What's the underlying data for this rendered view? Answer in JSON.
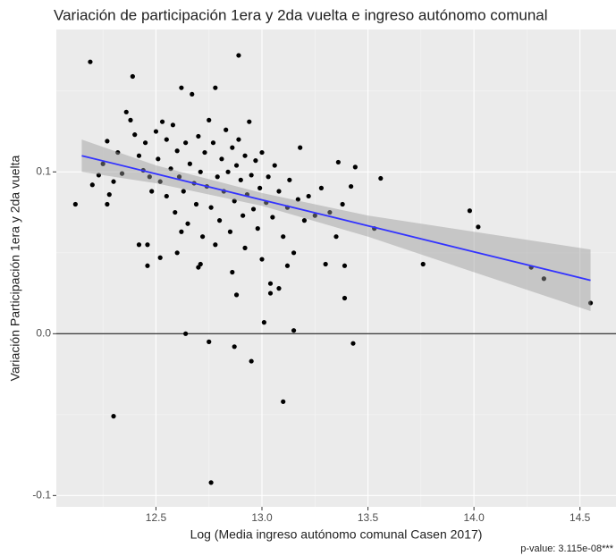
{
  "chart_data": {
    "type": "scatter",
    "title": "Variación de participación 1era y 2da vuelta e ingreso autónomo comunal",
    "x_label": "Log (Media ingreso autónomo comunal Casen 2017)",
    "y_label": "Variación Participación 1era y 2da vuelta",
    "annotation": "p-value: 3.115e-08***",
    "xlim": [
      12.03,
      14.67
    ],
    "ylim": [
      -0.107,
      0.188
    ],
    "xticks": [
      12.5,
      {
        "value": 13,
        "label": "13.0"
      },
      13.5,
      {
        "value": 14,
        "label": "14.0"
      },
      14.5
    ],
    "yticks": [
      -0.1,
      {
        "value": 0,
        "label": "0.0"
      },
      0.1
    ],
    "grid": true,
    "color": "#000000",
    "hline": 0,
    "x": [
      12.12,
      12.19,
      12.3,
      12.39,
      12.76,
      12.89,
      12.64,
      12.75,
      12.87,
      12.95,
      13.1,
      13.15,
      13.01,
      13.43,
      13.98,
      14.02,
      13.76,
      14.27,
      14.33,
      14.55,
      13.56,
      13.53,
      13.39,
      13.39,
      13.3,
      13.44,
      13.36,
      13.04,
      13.04,
      12.88,
      12.71,
      12.46,
      12.42,
      12.27,
      12.27,
      12.36,
      12.38,
      12.4,
      12.42,
      12.44,
      12.45,
      12.47,
      12.48,
      12.5,
      12.51,
      12.52,
      12.53,
      12.55,
      12.55,
      12.57,
      12.58,
      12.59,
      12.6,
      12.61,
      12.62,
      12.63,
      12.64,
      12.65,
      12.66,
      12.67,
      12.68,
      12.69,
      12.7,
      12.71,
      12.72,
      12.73,
      12.74,
      12.75,
      12.76,
      12.77,
      12.78,
      12.79,
      12.8,
      12.81,
      12.82,
      12.83,
      12.84,
      12.85,
      12.86,
      12.87,
      12.88,
      12.89,
      12.9,
      12.91,
      12.92,
      12.93,
      12.94,
      12.95,
      12.96,
      12.97,
      12.98,
      12.99,
      13.0,
      13.02,
      13.03,
      13.05,
      13.06,
      13.08,
      13.1,
      13.12,
      13.13,
      13.15,
      13.17,
      13.18,
      13.2,
      13.22,
      13.25,
      13.28,
      13.32,
      13.35,
      13.38,
      13.42,
      12.2,
      12.23,
      12.25,
      12.28,
      12.3,
      12.32,
      12.34,
      12.46,
      12.52,
      12.6,
      12.62,
      12.7,
      12.78,
      12.86,
      12.92,
      13.0,
      13.08,
      13.12
    ],
    "values": [
      0.08,
      0.168,
      -0.051,
      0.159,
      -0.092,
      0.172,
      0.0,
      -0.005,
      -0.008,
      -0.017,
      -0.042,
      0.002,
      0.007,
      -0.006,
      0.076,
      0.066,
      0.043,
      0.041,
      0.034,
      0.019,
      0.096,
      0.065,
      0.022,
      0.042,
      0.043,
      0.103,
      0.106,
      0.031,
      0.025,
      0.024,
      0.043,
      0.042,
      0.055,
      0.08,
      0.119,
      0.137,
      0.132,
      0.123,
      0.11,
      0.101,
      0.118,
      0.097,
      0.088,
      0.125,
      0.108,
      0.094,
      0.131,
      0.12,
      0.085,
      0.102,
      0.129,
      0.075,
      0.113,
      0.097,
      0.152,
      0.088,
      0.118,
      0.068,
      0.105,
      0.148,
      0.093,
      0.08,
      0.122,
      0.1,
      0.06,
      0.112,
      0.091,
      0.132,
      0.078,
      0.118,
      0.152,
      0.097,
      0.07,
      0.108,
      0.088,
      0.126,
      0.1,
      0.063,
      0.115,
      0.082,
      0.104,
      0.12,
      0.095,
      0.073,
      0.11,
      0.086,
      0.131,
      0.098,
      0.077,
      0.107,
      0.065,
      0.09,
      0.112,
      0.081,
      0.097,
      0.072,
      0.104,
      0.088,
      0.06,
      0.078,
      0.095,
      0.05,
      0.083,
      0.115,
      0.07,
      0.085,
      0.073,
      0.09,
      0.075,
      0.06,
      0.08,
      0.091,
      0.092,
      0.098,
      0.105,
      0.086,
      0.094,
      0.112,
      0.099,
      0.055,
      0.047,
      0.05,
      0.063,
      0.041,
      0.055,
      0.038,
      0.053,
      0.046,
      0.028,
      0.042
    ],
    "regression": {
      "color": "#3333ff",
      "band_color": "#999999",
      "x": [
        12.15,
        12.5,
        13.0,
        13.5,
        14.0,
        14.55
      ],
      "values": [
        0.11,
        0.0988,
        0.0827,
        0.0667,
        0.0506,
        0.033
      ],
      "lower": [
        0.1,
        0.093,
        0.079,
        0.06,
        0.038,
        0.014
      ],
      "upper": [
        0.12,
        0.104,
        0.087,
        0.073,
        0.063,
        0.052
      ]
    }
  }
}
